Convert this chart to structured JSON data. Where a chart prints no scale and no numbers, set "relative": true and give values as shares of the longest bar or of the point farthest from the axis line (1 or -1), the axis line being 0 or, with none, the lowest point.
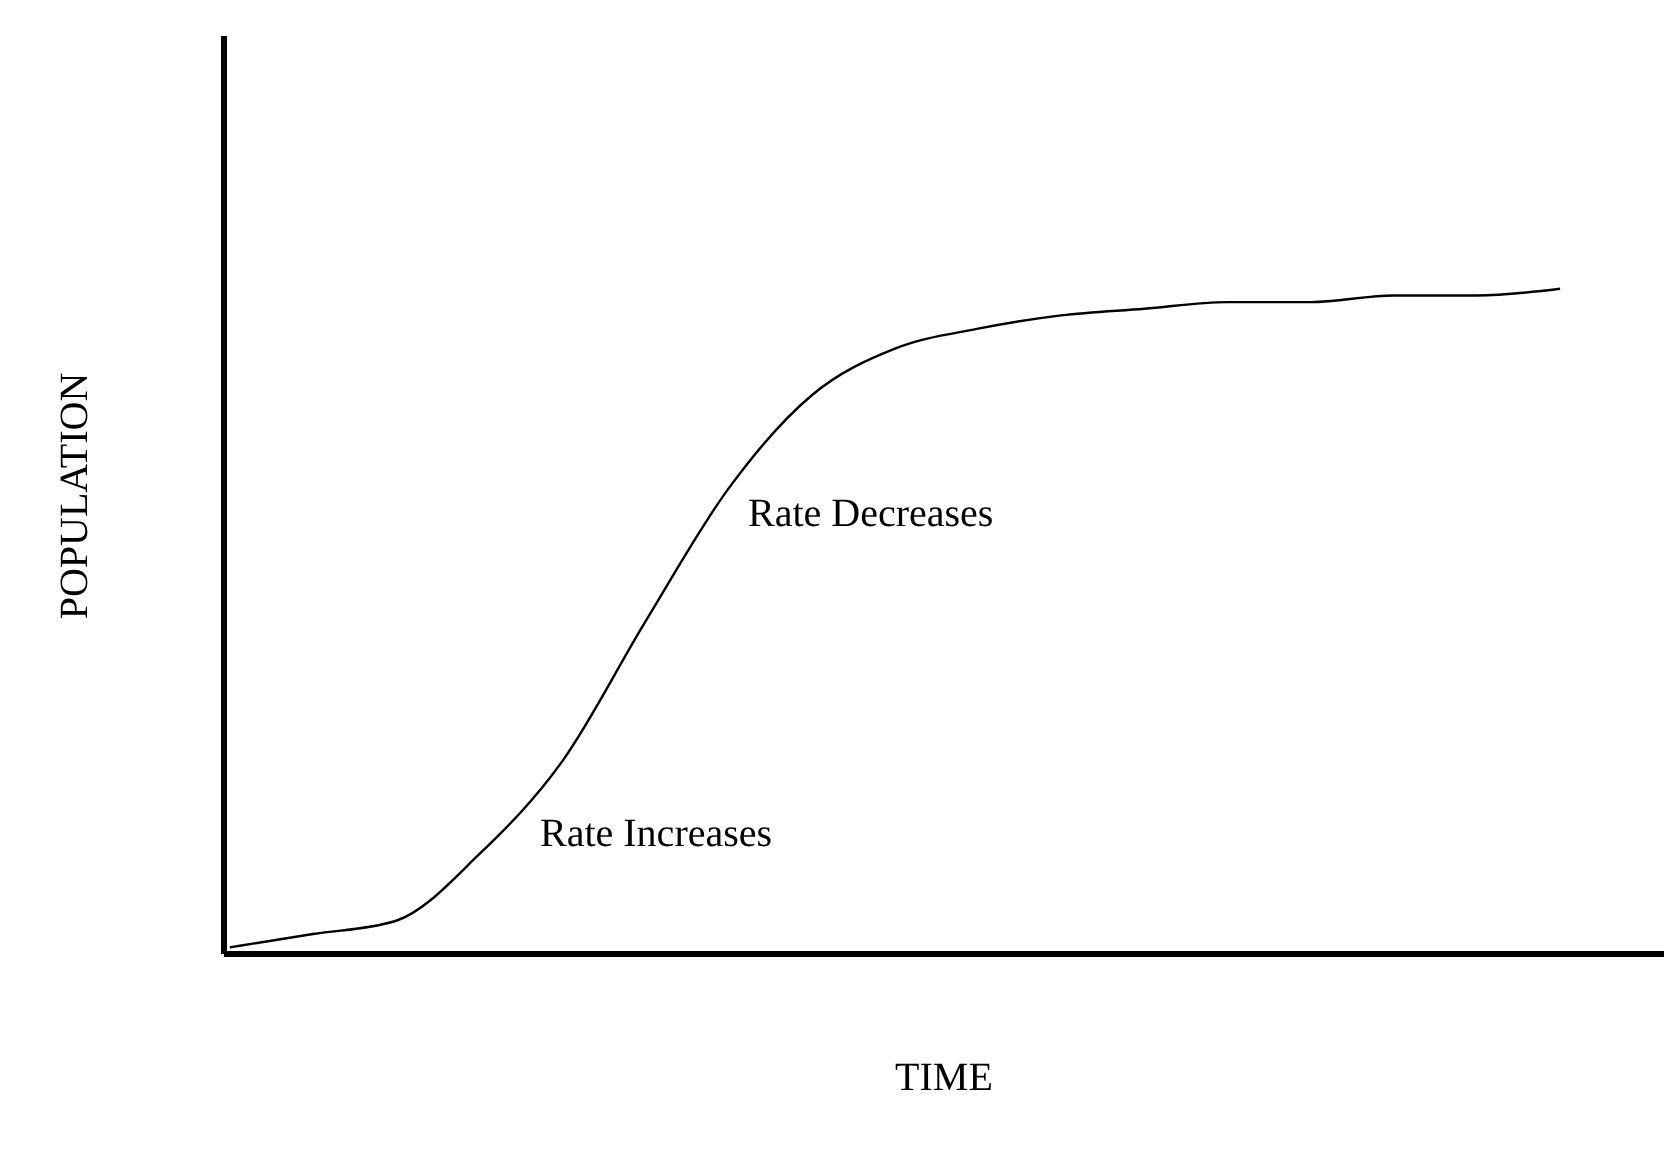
{
  "chart_data": {
    "type": "line",
    "relative": true,
    "xlabel": "TIME",
    "ylabel": "POPULATION",
    "categories": [
      null,
      null,
      null,
      null,
      null,
      null,
      null,
      null,
      null,
      null,
      null,
      null,
      null,
      null,
      null,
      null,
      null
    ],
    "series": [
      {
        "color": "#000000",
        "values": [
          0.01,
          0.03,
          0.05,
          0.15,
          0.29,
          0.5,
          0.7,
          0.84,
          0.91,
          0.94,
          0.96,
          0.97,
          0.98,
          0.98,
          0.99,
          0.99,
          1
        ]
      }
    ],
    "annotations": [
      "Rate Increases",
      "Rate Decreases"
    ]
  }
}
